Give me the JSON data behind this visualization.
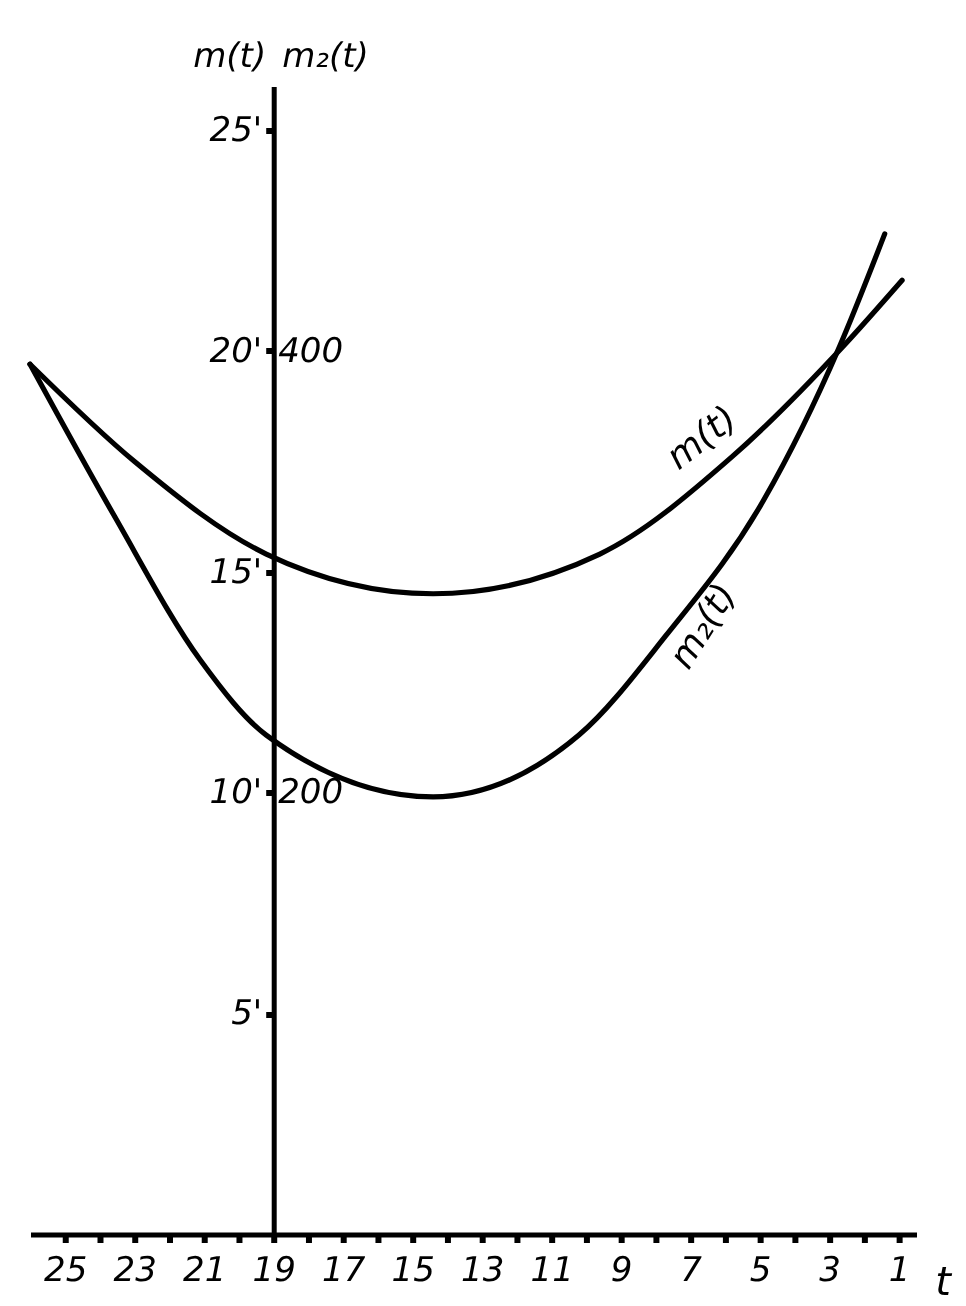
{
  "chart_data": {
    "type": "line",
    "xlabel": "t",
    "ylabel": "m(t)",
    "y2label": "m₂(t)",
    "xlim": [
      26,
      0.5
    ],
    "xticks": [
      1,
      {
        "value": 2,
        "label": null
      },
      3,
      {
        "value": 4,
        "label": null
      },
      5,
      {
        "value": 6,
        "label": null
      },
      7,
      {
        "value": 8,
        "label": null
      },
      9,
      {
        "value": 10,
        "label": null
      },
      11,
      {
        "value": 12,
        "label": null
      },
      13,
      {
        "value": 14,
        "label": null
      },
      15,
      {
        "value": 16,
        "label": null
      },
      17,
      {
        "value": 18,
        "label": null
      },
      19,
      {
        "value": 20,
        "label": null
      },
      21,
      {
        "value": 22,
        "label": null
      },
      23,
      {
        "value": 24,
        "label": null
      },
      25
    ],
    "ylim": [
      0,
      26
    ],
    "yticks": [
      {
        "value": 5,
        "label": "5'"
      },
      {
        "value": 10,
        "label": "10'"
      },
      {
        "value": 15,
        "label": "15'"
      },
      {
        "value": 20,
        "label": "20'"
      },
      {
        "value": 25,
        "label": "25'"
      }
    ],
    "y2lim": [
      0,
      520
    ],
    "y2ticks": [
      200,
      400
    ],
    "grid": false,
    "legend": false,
    "marker": "none",
    "line_style": "solid",
    "series": [
      {
        "name": "m(t)",
        "color": "#000000",
        "x": [
          26,
          23,
          19.2,
          14.4,
          9.6,
          5.8,
          2.6,
          0.9
        ],
        "values": [
          19.7,
          17.5,
          15.4,
          14.5,
          15.4,
          17.6,
          20.1,
          21.6
        ]
      },
      {
        "name": "m₂(t)",
        "color": "#000000",
        "axis": "y2",
        "x": [
          26,
          23.6,
          21.1,
          19.2,
          14.4,
          10.2,
          7.7,
          4.9,
          2.7,
          1.4
        ],
        "values": [
          394,
          326,
          260,
          226,
          198,
          226,
          271,
          332,
          402,
          453
        ]
      }
    ]
  }
}
